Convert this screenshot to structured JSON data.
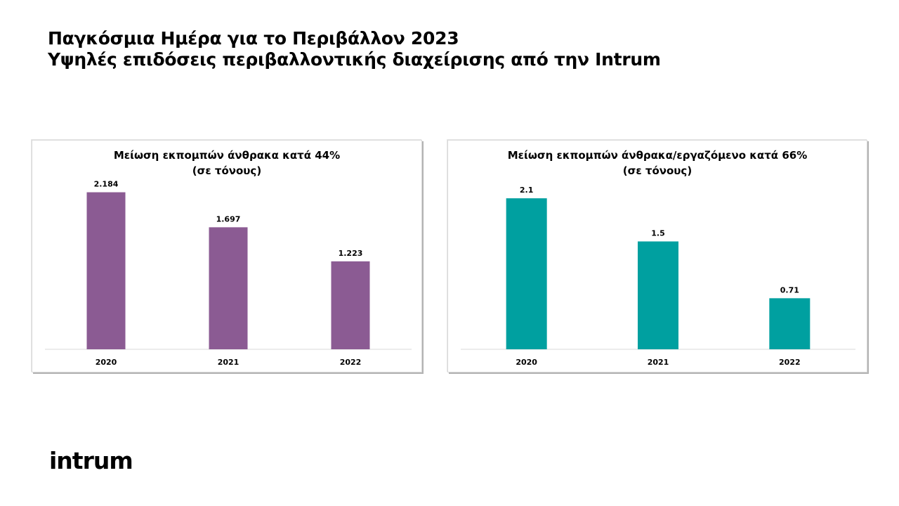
{
  "header": {
    "line1": "Παγκόσμια Ημέρα για το Περιβάλλον 2023",
    "line2": "Υψηλές επιδόσεις περιβαλλοντικής διαχείρισης από την Intrum"
  },
  "logo": {
    "text": "intrum"
  },
  "chart_data": [
    {
      "type": "bar",
      "title": "Μείωση εκπομπών άνθρακα κατά 44%",
      "subtitle": "(σε τόνους)",
      "categories": [
        "2020",
        "2021",
        "2022"
      ],
      "values": [
        2.184,
        1.697,
        1.223
      ],
      "value_labels": [
        "2.184",
        "1.697",
        "1.223"
      ],
      "ylim": [
        0,
        2.6
      ],
      "color": "#8b5b93",
      "grid": false
    },
    {
      "type": "bar",
      "title": "Μείωση εκπομπών άνθρακα/εργαζόμενο κατά 66%",
      "subtitle": "(σε τόνους)",
      "categories": [
        "2020",
        "2021",
        "2022"
      ],
      "values": [
        2.1,
        1.5,
        0.71
      ],
      "value_labels": [
        "2.1",
        "1.5",
        "0.71"
      ],
      "ylim": [
        0,
        2.6
      ],
      "color": "#00a0a0",
      "grid": false
    }
  ]
}
